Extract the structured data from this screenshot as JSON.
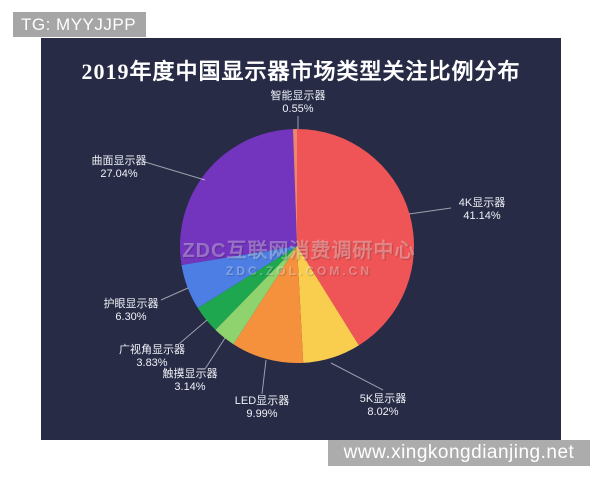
{
  "overlay": {
    "tg_label": "TG: MYYJJPP",
    "site_label": "www.xingkongdianjing.net"
  },
  "chart": {
    "title": "2019年度中国显示器市场类型关注比例分布",
    "watermark_line1": "ZDC互联网消费调研中心",
    "watermark_line2": "ZDC.ZOL.COM.CN"
  },
  "chart_data": {
    "type": "pie",
    "title": "2019年度中国显示器市场类型关注比例分布",
    "unit": "%",
    "direction": "clockwise",
    "start_angle": "12-o'clock",
    "legend": "none",
    "labels_shown_with_leader_lines": true,
    "background": "#272b46",
    "slices": [
      {
        "label": "4K显示器",
        "value": 41.14,
        "display": "41.14%",
        "color": "#EF5456"
      },
      {
        "label": "5K显示器",
        "value": 8.02,
        "display": "8.02%",
        "color": "#F9CD4D"
      },
      {
        "label": "LED显示器",
        "value": 9.99,
        "display": "9.99%",
        "color": "#F5913C"
      },
      {
        "label": "触摸显示器",
        "value": 3.14,
        "display": "3.14%",
        "color": "#8FD36E"
      },
      {
        "label": "广视角显示器",
        "value": 3.83,
        "display": "3.83%",
        "color": "#1EA74E"
      },
      {
        "label": "护眼显示器",
        "value": 6.3,
        "display": "6.30%",
        "color": "#4D7EE4"
      },
      {
        "label": "曲面显示器",
        "value": 27.04,
        "display": "27.04%",
        "color": "#7334BE"
      },
      {
        "label": "智能显示器",
        "value": 0.55,
        "display": "0.55%",
        "color": "#EE8573"
      }
    ]
  }
}
